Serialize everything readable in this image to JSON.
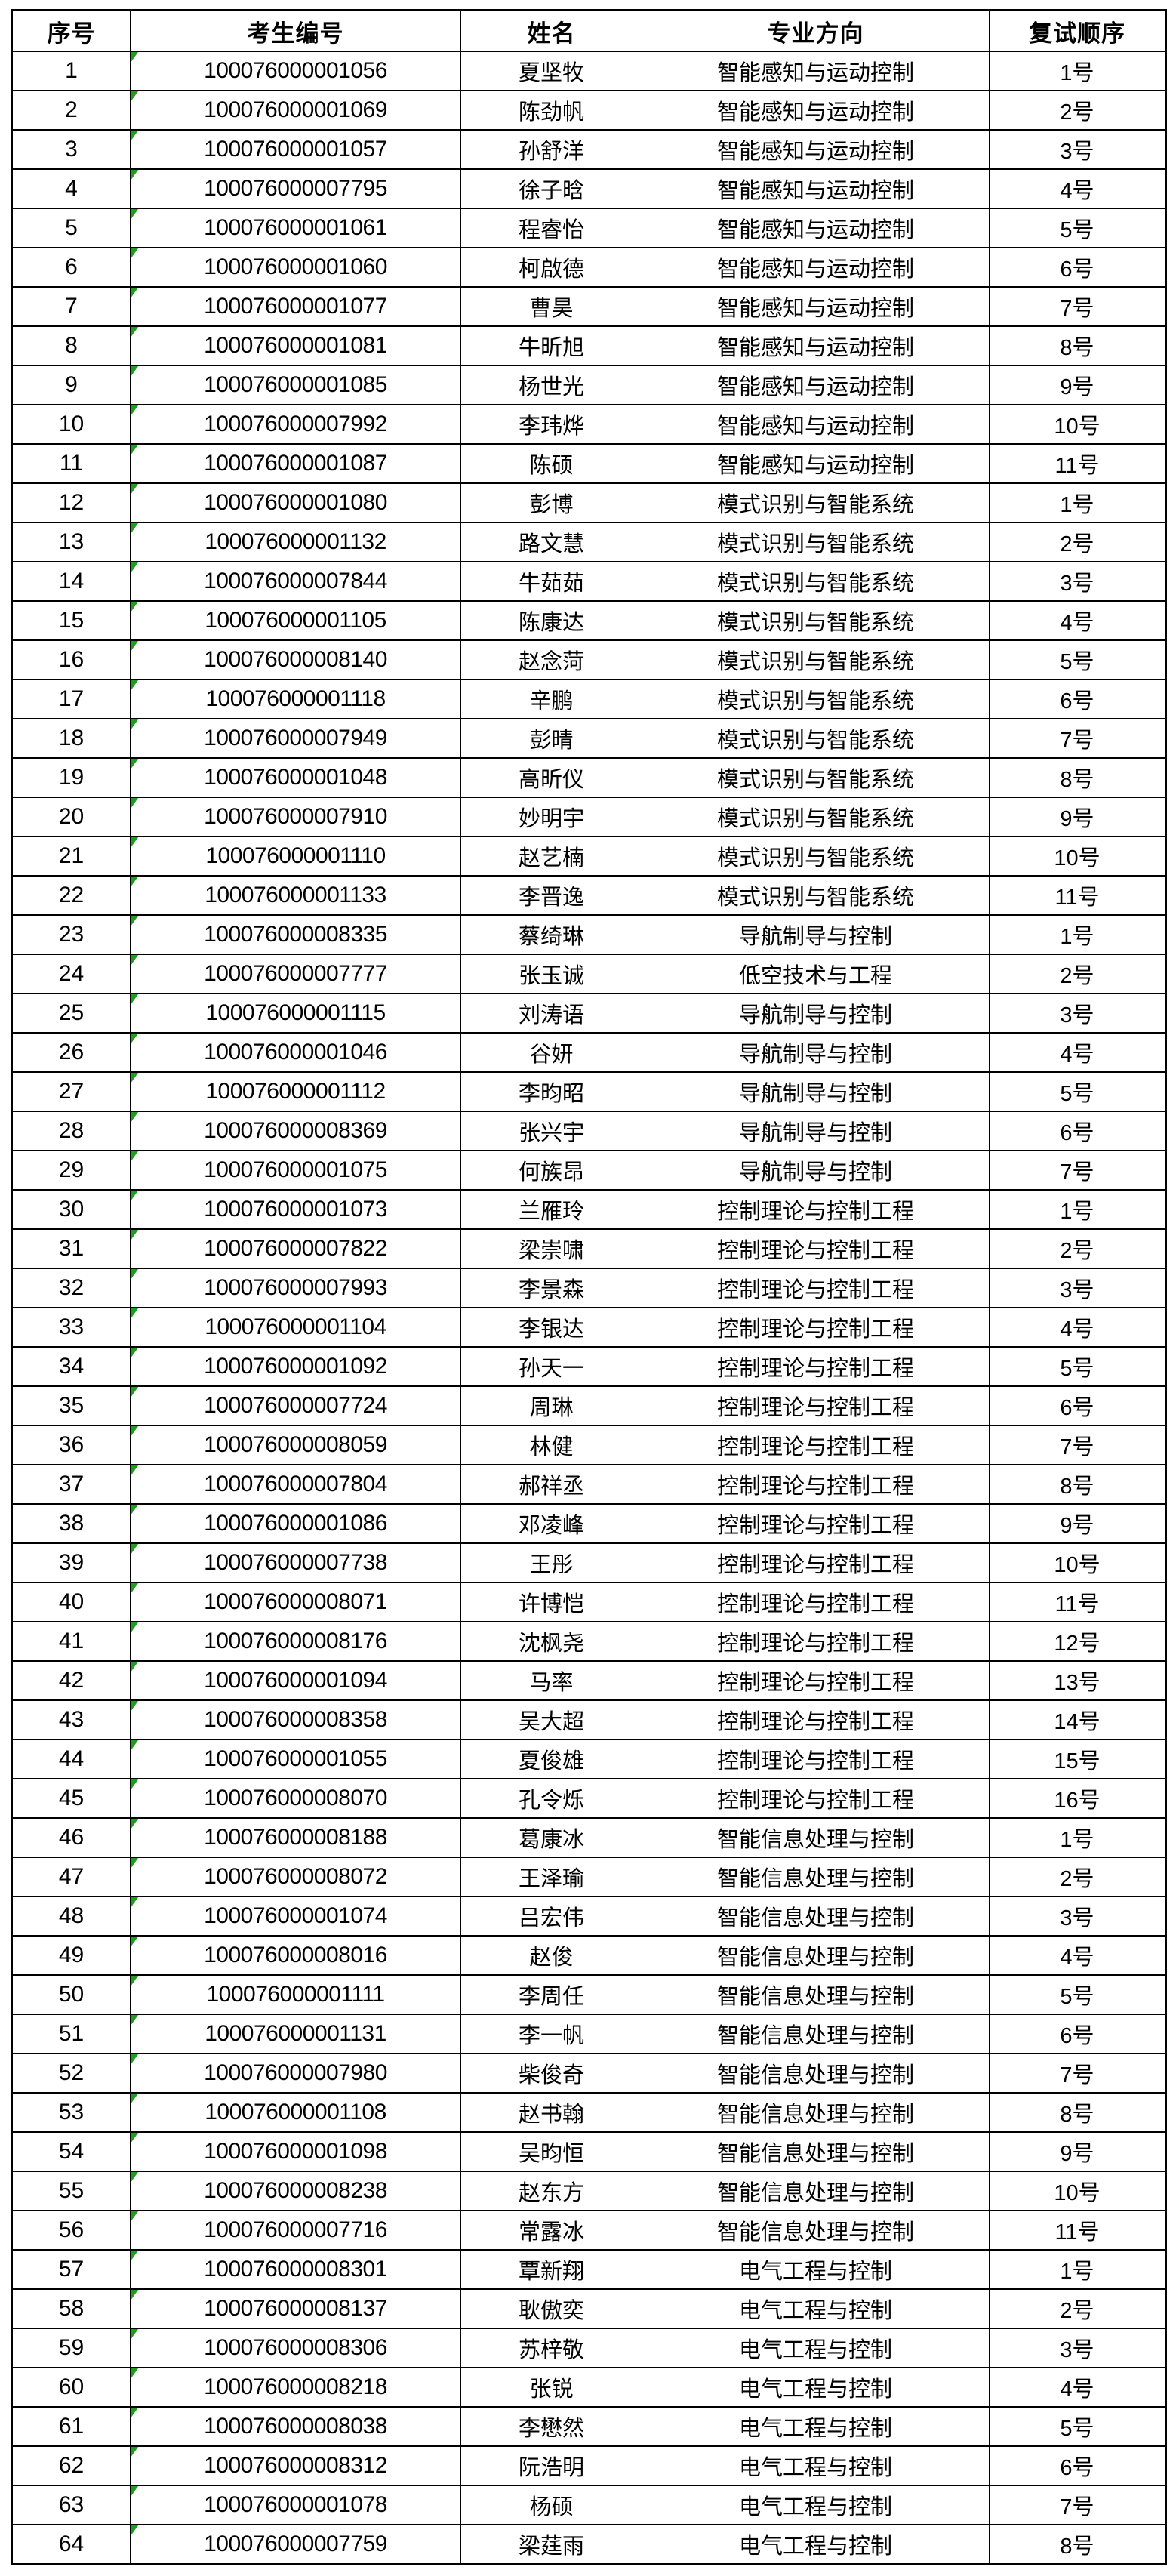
{
  "table": {
    "flag_color": "#1e9e1e",
    "flag_icon_meaning": "stored-as-text-corner-triangle",
    "columns": [
      {
        "key": "no",
        "label": "序号"
      },
      {
        "key": "id",
        "label": "考生编号"
      },
      {
        "key": "name",
        "label": "姓名"
      },
      {
        "key": "major",
        "label": "专业方向"
      },
      {
        "key": "order",
        "label": "复试顺序"
      }
    ],
    "rows": [
      {
        "no": "1",
        "id": "100076000001056",
        "name": "夏坚牧",
        "major": "智能感知与运动控制",
        "order": "1号"
      },
      {
        "no": "2",
        "id": "100076000001069",
        "name": "陈劲帆",
        "major": "智能感知与运动控制",
        "order": "2号"
      },
      {
        "no": "3",
        "id": "100076000001057",
        "name": "孙舒洋",
        "major": "智能感知与运动控制",
        "order": "3号"
      },
      {
        "no": "4",
        "id": "100076000007795",
        "name": "徐子晗",
        "major": "智能感知与运动控制",
        "order": "4号"
      },
      {
        "no": "5",
        "id": "100076000001061",
        "name": "程睿怡",
        "major": "智能感知与运动控制",
        "order": "5号"
      },
      {
        "no": "6",
        "id": "100076000001060",
        "name": "柯啟德",
        "major": "智能感知与运动控制",
        "order": "6号"
      },
      {
        "no": "7",
        "id": "100076000001077",
        "name": "曹昊",
        "major": "智能感知与运动控制",
        "order": "7号"
      },
      {
        "no": "8",
        "id": "100076000001081",
        "name": "牛昕旭",
        "major": "智能感知与运动控制",
        "order": "8号"
      },
      {
        "no": "9",
        "id": "100076000001085",
        "name": "杨世光",
        "major": "智能感知与运动控制",
        "order": "9号"
      },
      {
        "no": "10",
        "id": "100076000007992",
        "name": "李玮烨",
        "major": "智能感知与运动控制",
        "order": "10号"
      },
      {
        "no": "11",
        "id": "100076000001087",
        "name": "陈硕",
        "major": "智能感知与运动控制",
        "order": "11号"
      },
      {
        "no": "12",
        "id": "100076000001080",
        "name": "彭博",
        "major": "模式识别与智能系统",
        "order": "1号"
      },
      {
        "no": "13",
        "id": "100076000001132",
        "name": "路文慧",
        "major": "模式识别与智能系统",
        "order": "2号"
      },
      {
        "no": "14",
        "id": "100076000007844",
        "name": "牛茹茹",
        "major": "模式识别与智能系统",
        "order": "3号"
      },
      {
        "no": "15",
        "id": "100076000001105",
        "name": "陈康达",
        "major": "模式识别与智能系统",
        "order": "4号"
      },
      {
        "no": "16",
        "id": "100076000008140",
        "name": "赵念菏",
        "major": "模式识别与智能系统",
        "order": "5号"
      },
      {
        "no": "17",
        "id": "100076000001118",
        "name": "辛鹏",
        "major": "模式识别与智能系统",
        "order": "6号"
      },
      {
        "no": "18",
        "id": "100076000007949",
        "name": "彭晴",
        "major": "模式识别与智能系统",
        "order": "7号"
      },
      {
        "no": "19",
        "id": "100076000001048",
        "name": "高昕仪",
        "major": "模式识别与智能系统",
        "order": "8号"
      },
      {
        "no": "20",
        "id": "100076000007910",
        "name": "妙明宇",
        "major": "模式识别与智能系统",
        "order": "9号"
      },
      {
        "no": "21",
        "id": "100076000001110",
        "name": "赵艺楠",
        "major": "模式识别与智能系统",
        "order": "10号"
      },
      {
        "no": "22",
        "id": "100076000001133",
        "name": "李晋逸",
        "major": "模式识别与智能系统",
        "order": "11号"
      },
      {
        "no": "23",
        "id": "100076000008335",
        "name": "蔡绮琳",
        "major": "导航制导与控制",
        "order": "1号"
      },
      {
        "no": "24",
        "id": "100076000007777",
        "name": "张玉诚",
        "major": "低空技术与工程",
        "order": "2号"
      },
      {
        "no": "25",
        "id": "100076000001115",
        "name": "刘涛语",
        "major": "导航制导与控制",
        "order": "3号"
      },
      {
        "no": "26",
        "id": "100076000001046",
        "name": "谷妍",
        "major": "导航制导与控制",
        "order": "4号"
      },
      {
        "no": "27",
        "id": "100076000001112",
        "name": "李昀昭",
        "major": "导航制导与控制",
        "order": "5号"
      },
      {
        "no": "28",
        "id": "100076000008369",
        "name": "张兴宇",
        "major": "导航制导与控制",
        "order": "6号"
      },
      {
        "no": "29",
        "id": "100076000001075",
        "name": "何族昂",
        "major": "导航制导与控制",
        "order": "7号"
      },
      {
        "no": "30",
        "id": "100076000001073",
        "name": "兰雁玲",
        "major": "控制理论与控制工程",
        "order": "1号"
      },
      {
        "no": "31",
        "id": "100076000007822",
        "name": "梁崇啸",
        "major": "控制理论与控制工程",
        "order": "2号"
      },
      {
        "no": "32",
        "id": "100076000007993",
        "name": "李景森",
        "major": "控制理论与控制工程",
        "order": "3号"
      },
      {
        "no": "33",
        "id": "100076000001104",
        "name": "李银达",
        "major": "控制理论与控制工程",
        "order": "4号"
      },
      {
        "no": "34",
        "id": "100076000001092",
        "name": "孙天一",
        "major": "控制理论与控制工程",
        "order": "5号"
      },
      {
        "no": "35",
        "id": "100076000007724",
        "name": "周琳",
        "major": "控制理论与控制工程",
        "order": "6号"
      },
      {
        "no": "36",
        "id": "100076000008059",
        "name": "林健",
        "major": "控制理论与控制工程",
        "order": "7号"
      },
      {
        "no": "37",
        "id": "100076000007804",
        "name": "郝祥丞",
        "major": "控制理论与控制工程",
        "order": "8号"
      },
      {
        "no": "38",
        "id": "100076000001086",
        "name": "邓凌峰",
        "major": "控制理论与控制工程",
        "order": "9号"
      },
      {
        "no": "39",
        "id": "100076000007738",
        "name": "王彤",
        "major": "控制理论与控制工程",
        "order": "10号"
      },
      {
        "no": "40",
        "id": "100076000008071",
        "name": "许博恺",
        "major": "控制理论与控制工程",
        "order": "11号"
      },
      {
        "no": "41",
        "id": "100076000008176",
        "name": "沈枫尧",
        "major": "控制理论与控制工程",
        "order": "12号"
      },
      {
        "no": "42",
        "id": "100076000001094",
        "name": "马率",
        "major": "控制理论与控制工程",
        "order": "13号"
      },
      {
        "no": "43",
        "id": "100076000008358",
        "name": "吴大超",
        "major": "控制理论与控制工程",
        "order": "14号"
      },
      {
        "no": "44",
        "id": "100076000001055",
        "name": "夏俊雄",
        "major": "控制理论与控制工程",
        "order": "15号"
      },
      {
        "no": "45",
        "id": "100076000008070",
        "name": "孔令烁",
        "major": "控制理论与控制工程",
        "order": "16号"
      },
      {
        "no": "46",
        "id": "100076000008188",
        "name": "葛康冰",
        "major": "智能信息处理与控制",
        "order": "1号"
      },
      {
        "no": "47",
        "id": "100076000008072",
        "name": "王泽瑜",
        "major": "智能信息处理与控制",
        "order": "2号"
      },
      {
        "no": "48",
        "id": "100076000001074",
        "name": "吕宏伟",
        "major": "智能信息处理与控制",
        "order": "3号"
      },
      {
        "no": "49",
        "id": "100076000008016",
        "name": "赵俊",
        "major": "智能信息处理与控制",
        "order": "4号"
      },
      {
        "no": "50",
        "id": "100076000001111",
        "name": "李周任",
        "major": "智能信息处理与控制",
        "order": "5号"
      },
      {
        "no": "51",
        "id": "100076000001131",
        "name": "李一帆",
        "major": "智能信息处理与控制",
        "order": "6号"
      },
      {
        "no": "52",
        "id": "100076000007980",
        "name": "柴俊奇",
        "major": "智能信息处理与控制",
        "order": "7号"
      },
      {
        "no": "53",
        "id": "100076000001108",
        "name": "赵书翰",
        "major": "智能信息处理与控制",
        "order": "8号"
      },
      {
        "no": "54",
        "id": "100076000001098",
        "name": "吴昀恒",
        "major": "智能信息处理与控制",
        "order": "9号"
      },
      {
        "no": "55",
        "id": "100076000008238",
        "name": "赵东方",
        "major": "智能信息处理与控制",
        "order": "10号"
      },
      {
        "no": "56",
        "id": "100076000007716",
        "name": "常露冰",
        "major": "智能信息处理与控制",
        "order": "11号"
      },
      {
        "no": "57",
        "id": "100076000008301",
        "name": "覃新翔",
        "major": "电气工程与控制",
        "order": "1号"
      },
      {
        "no": "58",
        "id": "100076000008137",
        "name": "耿傲奕",
        "major": "电气工程与控制",
        "order": "2号"
      },
      {
        "no": "59",
        "id": "100076000008306",
        "name": "苏梓敬",
        "major": "电气工程与控制",
        "order": "3号"
      },
      {
        "no": "60",
        "id": "100076000008218",
        "name": "张锐",
        "major": "电气工程与控制",
        "order": "4号"
      },
      {
        "no": "61",
        "id": "100076000008038",
        "name": "李懋然",
        "major": "电气工程与控制",
        "order": "5号"
      },
      {
        "no": "62",
        "id": "100076000008312",
        "name": "阮浩明",
        "major": "电气工程与控制",
        "order": "6号"
      },
      {
        "no": "63",
        "id": "100076000001078",
        "name": "杨硕",
        "major": "电气工程与控制",
        "order": "7号"
      },
      {
        "no": "64",
        "id": "100076000007759",
        "name": "梁莛雨",
        "major": "电气工程与控制",
        "order": "8号"
      }
    ]
  }
}
